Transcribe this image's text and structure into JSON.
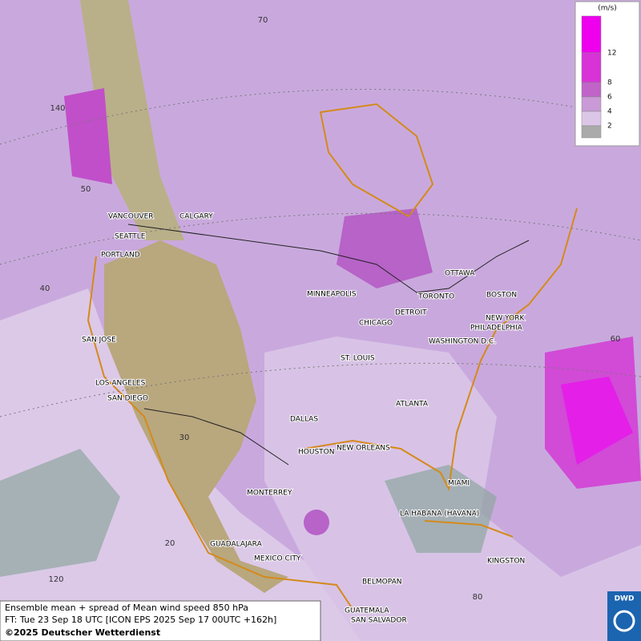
{
  "cities": [
    "VANCOUVER",
    "CALGARY",
    "SEATTLE",
    "PORTLAND",
    "MINNEAPOLIS",
    "TORONTO",
    "OTTAWA",
    "DETROIT",
    "CHICAGO",
    "BOSTON",
    "NEW YORK",
    "PHILADELPHIA",
    "WASHINGTON D.C.",
    "ST. LOUIS",
    "SAN JOSE",
    "LOS ANGELES",
    "SAN DIEGO",
    "ATLANTA",
    "DALLAS",
    "HOUSTON",
    "NEW ORLEANS",
    "MIAMI",
    "MONTERREY",
    "LA HABANA (HAVANA)",
    "GUADALAJARA",
    "MEXICO CITY",
    "KINGSTON",
    "BELMOPAN",
    "GUATEMALA",
    "SAN SALVADOR"
  ],
  "grid_labels": [
    "70",
    "140",
    "50",
    "40",
    "30",
    "20",
    "120",
    "80",
    "60"
  ],
  "legend": {
    "unit": "(m/s)",
    "levels": [
      "12",
      "8",
      "6",
      "4",
      "2"
    ]
  },
  "caption": {
    "line1": "Ensemble mean + spread of Mean wind speed 850 hPa",
    "line2": "FT: Tue 23 Sep 18 UTC [ICON EPS 2025 Sep 17 00UTC +162h]",
    "line3": "©2025 Deutscher Wetterdienst"
  },
  "logo": "DWD"
}
